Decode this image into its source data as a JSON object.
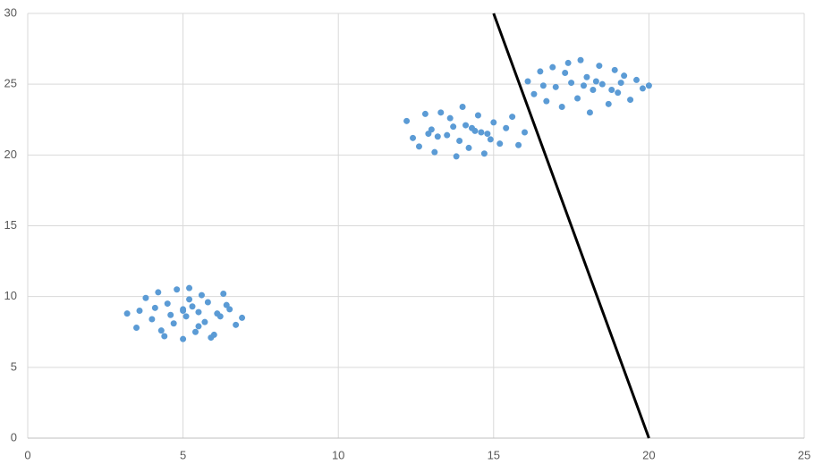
{
  "chart_data": {
    "type": "scatter",
    "xlim": [
      0,
      25
    ],
    "xticks": [
      0,
      5,
      10,
      15,
      20,
      25
    ],
    "ylim": [
      0,
      30
    ],
    "yticks": [
      0,
      5,
      10,
      15,
      20,
      25,
      30
    ],
    "grid": true,
    "series": [
      {
        "color": "#5b9bd5",
        "x": [
          3.2,
          3.5,
          3.8,
          4.0,
          4.2,
          4.4,
          4.5,
          4.7,
          4.8,
          5.0,
          5.0,
          5.1,
          5.2,
          5.3,
          5.4,
          5.5,
          5.6,
          5.7,
          5.8,
          6.0,
          6.1,
          6.3,
          6.5,
          6.7,
          6.9,
          4.1,
          4.6,
          5.2,
          5.9,
          6.4,
          3.6,
          4.3,
          5.5,
          6.2,
          5.0
        ],
        "y": [
          8.8,
          7.8,
          9.9,
          8.4,
          10.3,
          7.2,
          9.5,
          8.1,
          10.5,
          9.0,
          7.0,
          8.6,
          10.6,
          9.3,
          7.5,
          8.9,
          10.1,
          8.2,
          9.6,
          7.3,
          8.8,
          10.2,
          9.1,
          8.0,
          8.5,
          9.2,
          8.7,
          9.8,
          7.1,
          9.4,
          9.0,
          7.6,
          7.9,
          8.6,
          9.1
        ]
      },
      {
        "color": "#5b9bd5",
        "x": [
          12.2,
          12.4,
          12.6,
          12.8,
          13.0,
          13.1,
          13.3,
          13.5,
          13.6,
          13.8,
          13.9,
          14.0,
          14.1,
          14.2,
          14.4,
          14.5,
          14.7,
          14.8,
          15.0,
          15.2,
          15.4,
          15.6,
          15.8,
          16.0,
          13.2,
          13.7,
          14.3,
          14.9,
          12.9,
          14.6
        ],
        "y": [
          22.4,
          21.2,
          20.6,
          22.9,
          21.8,
          20.2,
          23.0,
          21.4,
          22.6,
          19.9,
          21.0,
          23.4,
          22.1,
          20.5,
          21.7,
          22.8,
          20.1,
          21.5,
          22.3,
          20.8,
          21.9,
          22.7,
          20.7,
          21.6,
          21.3,
          22.0,
          21.9,
          21.1,
          21.5,
          21.6
        ]
      },
      {
        "color": "#5b9bd5",
        "x": [
          16.1,
          16.3,
          16.5,
          16.7,
          16.9,
          17.0,
          17.2,
          17.4,
          17.5,
          17.7,
          17.8,
          18.0,
          18.1,
          18.2,
          18.4,
          18.5,
          18.7,
          18.9,
          19.0,
          19.2,
          19.4,
          19.6,
          19.8,
          20.0,
          17.3,
          17.9,
          18.3,
          18.8,
          16.6,
          19.1
        ],
        "y": [
          25.2,
          24.3,
          25.9,
          23.8,
          26.2,
          24.8,
          23.4,
          26.5,
          25.1,
          24.0,
          26.7,
          25.5,
          23.0,
          24.6,
          26.3,
          25.0,
          23.6,
          26.0,
          24.4,
          25.6,
          23.9,
          25.3,
          24.7,
          24.9,
          25.8,
          24.9,
          25.2,
          24.6,
          24.9,
          25.1
        ]
      },
      {
        "type": "line",
        "color": "#000000",
        "x": [
          15,
          20
        ],
        "y": [
          30,
          0
        ]
      }
    ]
  }
}
